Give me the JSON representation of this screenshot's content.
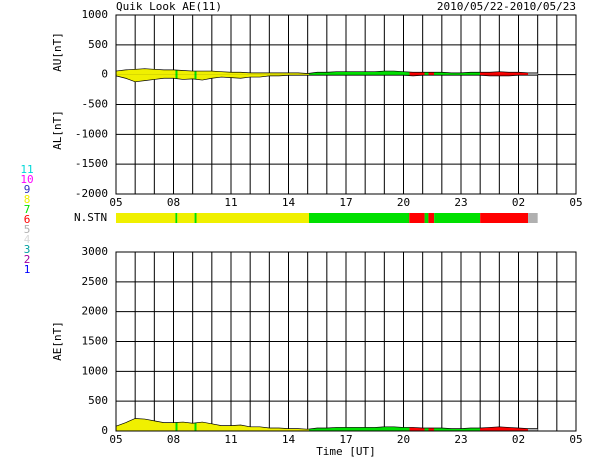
{
  "chart_data": [
    {
      "type": "area",
      "title": "Quik Look AE(11)",
      "subtitle": "2010/05/22-2010/05/23",
      "ylabels": [
        "AU[nT]",
        "AL[nT]"
      ],
      "x": [
        5,
        5.5,
        6,
        6.5,
        7,
        7.5,
        8,
        8.5,
        9,
        9.5,
        10,
        10.5,
        11,
        11.5,
        12,
        12.5,
        13,
        13.5,
        14,
        14.5,
        15,
        15.5,
        16,
        16.5,
        17,
        17.5,
        18,
        18.5,
        19,
        19.5,
        20,
        20.5,
        21,
        21.5,
        22,
        22.5,
        23,
        23.5,
        24,
        24.5,
        25,
        25.5,
        26,
        26.5,
        27
      ],
      "series": [
        {
          "name": "AU",
          "color": "#000000",
          "values": [
            60,
            80,
            90,
            100,
            90,
            80,
            80,
            70,
            60,
            60,
            60,
            50,
            40,
            40,
            30,
            30,
            30,
            30,
            30,
            30,
            20,
            40,
            40,
            50,
            50,
            50,
            50,
            50,
            60,
            60,
            50,
            40,
            40,
            40,
            40,
            30,
            30,
            40,
            40,
            40,
            50,
            40,
            40,
            30,
            30
          ]
        },
        {
          "name": "AL",
          "color": "#000000",
          "values": [
            -20,
            -60,
            -120,
            -100,
            -80,
            -60,
            -60,
            -80,
            -70,
            -90,
            -60,
            -40,
            -50,
            -60,
            -40,
            -40,
            -20,
            -20,
            -10,
            -10,
            -10,
            -10,
            -10,
            -10,
            -10,
            -10,
            -10,
            -10,
            -10,
            -10,
            -10,
            -20,
            -10,
            -10,
            -10,
            -10,
            -10,
            -10,
            -10,
            -20,
            -20,
            -20,
            -10,
            -10,
            -10
          ]
        }
      ],
      "xlim": [
        5,
        29
      ],
      "xticks": [
        {
          "value": 5,
          "label": "05"
        },
        {
          "value": 8,
          "label": "08"
        },
        11,
        14,
        17,
        20,
        23,
        {
          "value": 26,
          "label": "02"
        },
        {
          "value": 29,
          "label": "05"
        }
      ],
      "xgrid": [
        5,
        6,
        7,
        8,
        9,
        10,
        11,
        12,
        13,
        14,
        15,
        16,
        17,
        18,
        19,
        20,
        21,
        22,
        23,
        24,
        25,
        26,
        27,
        28,
        29
      ],
      "ylim": [
        -2000,
        1000
      ],
      "yticks": [
        -2000,
        -1500,
        -1000,
        -500,
        0,
        500,
        1000
      ]
    },
    {
      "type": "band",
      "label": "N.STN",
      "stations": [
        {
          "label": "11",
          "color": "#00d8d8"
        },
        {
          "label": "10",
          "color": "#ff00ff"
        },
        {
          "label": "9",
          "color": "#3030c0"
        },
        {
          "label": "8",
          "color": "#f0f000"
        },
        {
          "label": "7",
          "color": "#00e000"
        },
        {
          "label": "6",
          "color": "#ff0000"
        },
        {
          "label": "5",
          "color": "#b0b0b0"
        },
        {
          "label": "4",
          "color": "#d8d8d8"
        },
        {
          "label": "3",
          "color": "#00a0a0"
        },
        {
          "label": "2",
          "color": "#a000a0"
        },
        {
          "label": "1",
          "color": "#0000ff"
        }
      ],
      "segments": [
        {
          "start": 5,
          "end": 8.1,
          "n": 8
        },
        {
          "start": 8.1,
          "end": 8.2,
          "n": 7
        },
        {
          "start": 8.2,
          "end": 9.1,
          "n": 8
        },
        {
          "start": 9.1,
          "end": 9.2,
          "n": 7
        },
        {
          "start": 9.2,
          "end": 15.07,
          "n": 8
        },
        {
          "start": 15.07,
          "end": 20.3,
          "n": 7
        },
        {
          "start": 20.3,
          "end": 21.1,
          "n": 6
        },
        {
          "start": 21.1,
          "end": 21.3,
          "n": 7
        },
        {
          "start": 21.3,
          "end": 21.6,
          "n": 6
        },
        {
          "start": 21.6,
          "end": 24.0,
          "n": 7
        },
        {
          "start": 24.0,
          "end": 26.5,
          "n": 6
        },
        {
          "start": 26.5,
          "end": 27.0,
          "n": 5
        }
      ],
      "xlim": [
        5,
        29
      ]
    },
    {
      "type": "area",
      "ylabel": "AE[nT]",
      "xlabel": "Time [UT]",
      "x": [
        5,
        5.5,
        6,
        6.5,
        7,
        7.5,
        8,
        8.5,
        9,
        9.5,
        10,
        10.5,
        11,
        11.5,
        12,
        12.5,
        13,
        13.5,
        14,
        14.5,
        15,
        15.5,
        16,
        16.5,
        17,
        17.5,
        18,
        18.5,
        19,
        19.5,
        20,
        20.5,
        21,
        21.5,
        22,
        22.5,
        23,
        23.5,
        24,
        24.5,
        25,
        25.5,
        26,
        26.5,
        27
      ],
      "series": [
        {
          "name": "AE",
          "color": "#000000",
          "values": [
            80,
            140,
            210,
            200,
            170,
            140,
            140,
            150,
            130,
            150,
            120,
            90,
            90,
            100,
            70,
            70,
            50,
            50,
            40,
            40,
            30,
            50,
            50,
            60,
            60,
            60,
            60,
            60,
            70,
            70,
            60,
            60,
            50,
            50,
            50,
            40,
            40,
            50,
            50,
            60,
            70,
            60,
            50,
            40,
            40
          ]
        }
      ],
      "xlim": [
        5,
        29
      ],
      "xticks": [
        {
          "value": 5,
          "label": "05"
        },
        {
          "value": 8,
          "label": "08"
        },
        11,
        14,
        17,
        20,
        23,
        {
          "value": 26,
          "label": "02"
        },
        {
          "value": 29,
          "label": "05"
        }
      ],
      "xgrid": [
        5,
        6,
        7,
        8,
        9,
        10,
        11,
        12,
        13,
        14,
        15,
        16,
        17,
        18,
        19,
        20,
        21,
        22,
        23,
        24,
        25,
        26,
        27,
        28,
        29
      ],
      "ylim": [
        0,
        3000
      ],
      "yticks": [
        0,
        500,
        1000,
        1500,
        2000,
        2500,
        3000
      ]
    }
  ]
}
